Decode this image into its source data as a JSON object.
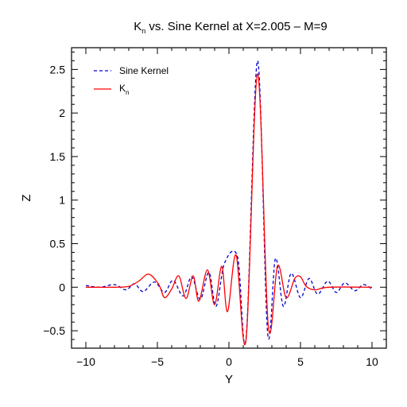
{
  "chart_data": {
    "type": "line",
    "title_prefix": "K",
    "title_subscript": "n",
    "title_suffix": " vs. Sine Kernel at X=2.005 – M=9",
    "xlabel": "Y",
    "ylabel": "Z",
    "xlim": [
      -10,
      10
    ],
    "ylim": [
      -0.7,
      2.75
    ],
    "x_ticks": [
      -10,
      -5,
      0,
      5,
      10
    ],
    "x_tick_labels": [
      "−10",
      "−5",
      "0",
      "5",
      "10"
    ],
    "y_ticks": [
      -0.5,
      0,
      0.5,
      1,
      1.5,
      2,
      2.5
    ],
    "y_tick_labels": [
      "−0.5",
      "0",
      "0.5",
      "1",
      "1.5",
      "2",
      "2.5"
    ],
    "grid": false,
    "legend_position": "top-left",
    "series": [
      {
        "name": "Sine Kernel",
        "color": "#0000cc",
        "dash": "dashed",
        "x": [
          -10.0,
          -9.0,
          -8.0,
          -7.2,
          -6.6,
          -6.0,
          -5.2,
          -4.5,
          -3.9,
          -3.2,
          -2.6,
          -2.0,
          -1.4,
          -0.9,
          -0.3,
          0.6,
          1.2,
          2.0,
          2.7,
          3.25,
          3.8,
          4.35,
          5.0,
          5.6,
          6.2,
          6.9,
          7.5,
          8.1,
          8.8,
          9.4,
          10.0
        ],
        "y": [
          0.02,
          0.0,
          0.03,
          -0.03,
          0.04,
          -0.05,
          0.06,
          -0.06,
          0.08,
          -0.1,
          0.12,
          -0.14,
          0.17,
          -0.22,
          0.28,
          0.35,
          -0.58,
          2.6,
          -0.52,
          0.33,
          -0.22,
          0.16,
          -0.12,
          0.1,
          -0.08,
          0.07,
          -0.06,
          0.05,
          -0.04,
          0.03,
          -0.02
        ]
      },
      {
        "name": "K",
        "name_subscript": "n",
        "color": "#ff0000",
        "dash": "solid",
        "x": [
          -10.0,
          -8.0,
          -7.0,
          -6.3,
          -5.6,
          -4.9,
          -4.5,
          -4.0,
          -3.5,
          -3.0,
          -2.5,
          -2.1,
          -1.5,
          -1.0,
          -0.5,
          -0.1,
          0.5,
          1.2,
          2.0,
          2.75,
          3.4,
          4.0,
          4.6,
          5.0,
          5.4,
          6.0,
          7.0,
          10.0
        ],
        "y": [
          0.0,
          0.0,
          0.01,
          0.07,
          0.15,
          0.03,
          -0.12,
          -0.02,
          0.13,
          -0.13,
          0.13,
          -0.16,
          0.2,
          -0.2,
          0.24,
          -0.28,
          0.37,
          -0.6,
          2.45,
          -0.45,
          0.25,
          -0.12,
          0.1,
          0.12,
          0.01,
          -0.03,
          0.0,
          0.0
        ]
      }
    ]
  }
}
